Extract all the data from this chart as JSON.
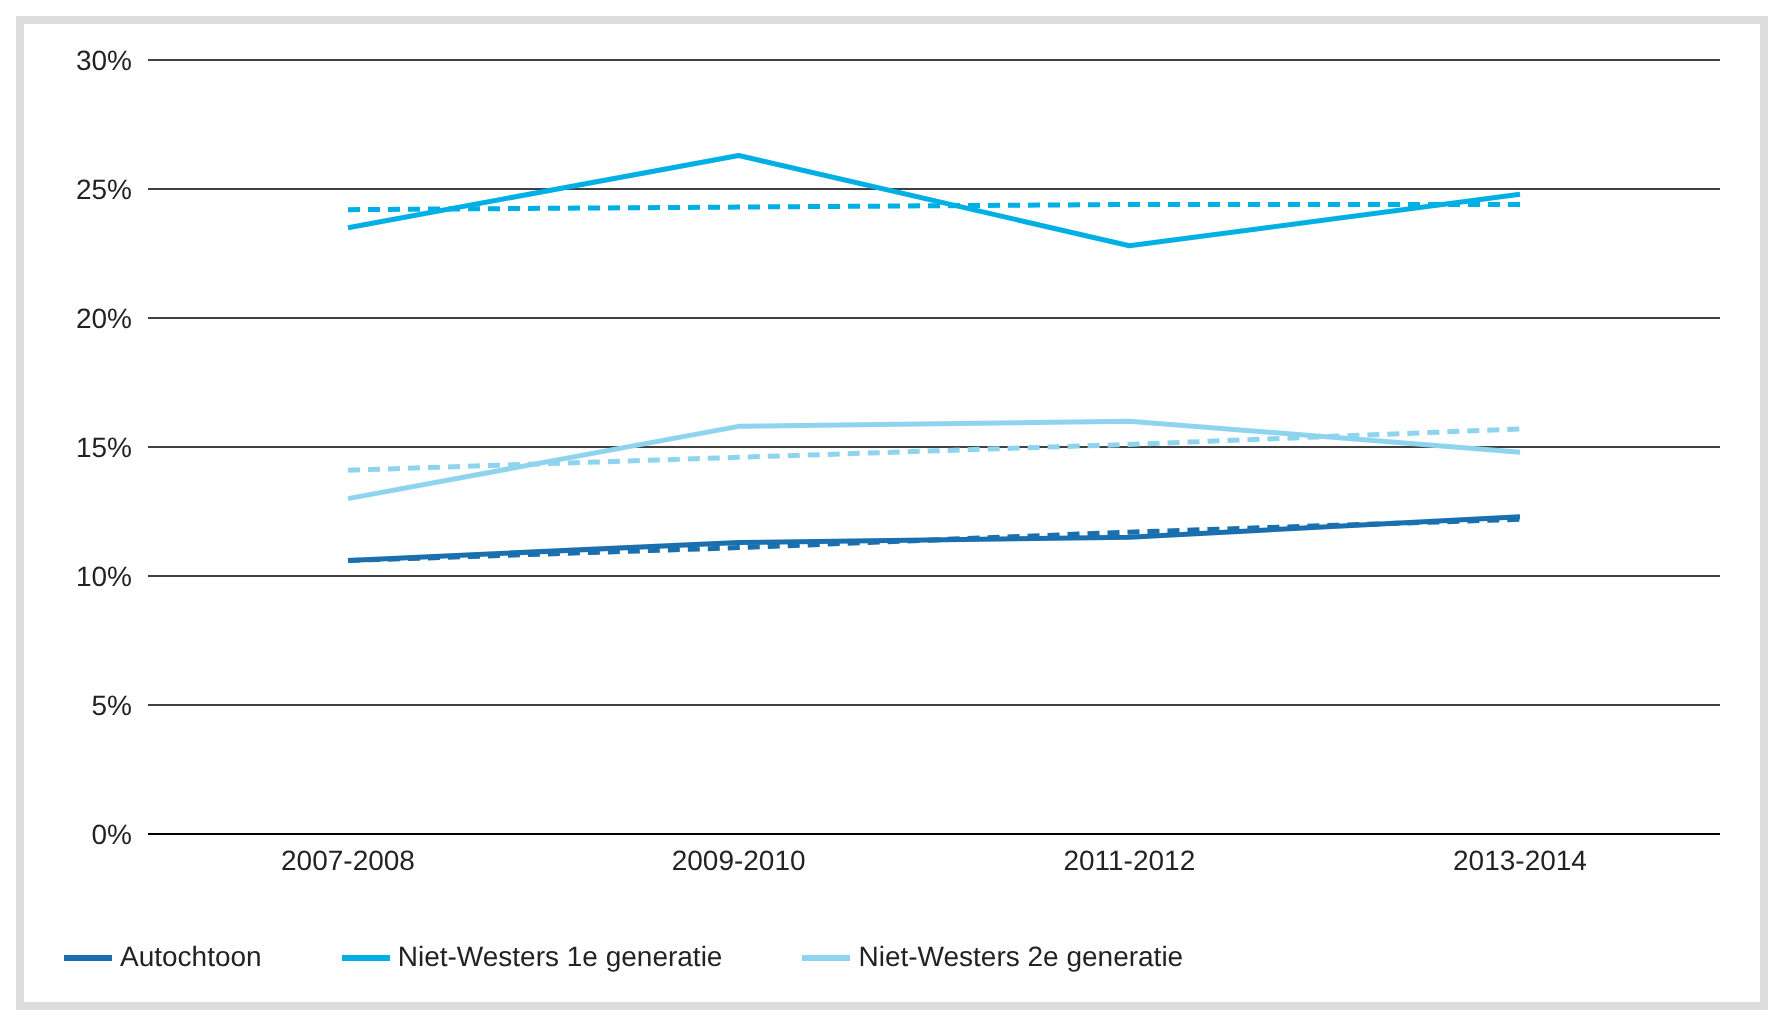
{
  "chart_data": {
    "type": "line",
    "categories": [
      "2007-2008",
      "2009-2010",
      "2011-2012",
      "2013-2014"
    ],
    "series": [
      {
        "name": "Autochtoon",
        "color": "#1a6faf",
        "values": [
          10.6,
          11.3,
          11.5,
          12.3
        ]
      },
      {
        "name": "Niet-Westers 1e generatie",
        "color": "#00b0e4",
        "values": [
          23.5,
          26.3,
          22.8,
          24.8
        ]
      },
      {
        "name": "Niet-Westers 2e generatie",
        "color": "#8fd4ee",
        "values": [
          13.0,
          15.8,
          16.0,
          14.8
        ]
      },
      {
        "color": "#1a6faf",
        "line_style": "dashed",
        "values": [
          10.6,
          11.1,
          11.7,
          12.2
        ]
      },
      {
        "color": "#00b0e4",
        "line_style": "dashed",
        "values": [
          24.2,
          24.3,
          24.4,
          24.4
        ]
      },
      {
        "color": "#8fd4ee",
        "line_style": "dashed",
        "values": [
          14.1,
          14.6,
          15.1,
          15.7
        ]
      }
    ],
    "ylim": [
      0,
      30
    ],
    "yticks": [
      {
        "value": 0,
        "label": "0%"
      },
      {
        "value": 5,
        "label": "5%"
      },
      {
        "value": 10,
        "label": "10%"
      },
      {
        "value": 15,
        "label": "15%"
      },
      {
        "value": 20,
        "label": "20%"
      },
      {
        "value": 25,
        "label": "25%"
      },
      {
        "value": 30,
        "label": "30%"
      }
    ],
    "grid": "y",
    "legend": "bottom left",
    "marker": "none"
  }
}
